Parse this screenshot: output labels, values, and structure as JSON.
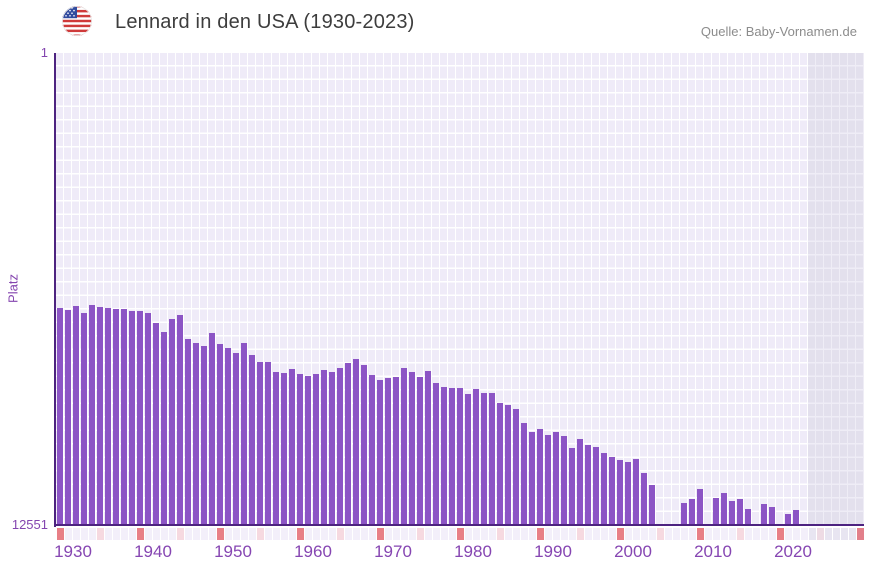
{
  "header": {
    "title": "Lennard in den USA (1930-2023)",
    "source": "Quelle: Baby-Vornamen.de",
    "flag_icon": "us-flag-icon"
  },
  "y_axis": {
    "label": "Platz",
    "tick_top": "1",
    "tick_bottom": "12551"
  },
  "chart_data": {
    "type": "bar",
    "title": "Lennard in den USA (1930-2023)",
    "xlabel": "",
    "ylabel": "Platz",
    "ylim": [
      1,
      12551
    ],
    "y_axis_inverted": true,
    "grid": true,
    "bar_color": "#8c55c5",
    "axis_color": "#4d2380",
    "tick_color": "#8646b2",
    "plot_bg": "#efebf8",
    "no_data_region_bg": "#e3e0ed",
    "decade_marker_color": "#e87f86",
    "half_decade_marker_color": "#f6d9e0",
    "x_range_shown": [
      1930,
      2030
    ],
    "no_data_shaded_region": [
      2024,
      2030
    ],
    "x_tick_labels": [
      "1930",
      "1940",
      "1950",
      "1960",
      "1970",
      "1980",
      "1990",
      "2000",
      "2010",
      "2020"
    ],
    "years": [
      1930,
      1931,
      1932,
      1933,
      1934,
      1935,
      1936,
      1937,
      1938,
      1939,
      1940,
      1941,
      1942,
      1943,
      1944,
      1945,
      1946,
      1947,
      1948,
      1949,
      1950,
      1951,
      1952,
      1953,
      1954,
      1955,
      1956,
      1957,
      1958,
      1959,
      1960,
      1961,
      1962,
      1963,
      1964,
      1965,
      1966,
      1967,
      1968,
      1969,
      1970,
      1971,
      1972,
      1973,
      1974,
      1975,
      1976,
      1977,
      1978,
      1979,
      1980,
      1981,
      1982,
      1983,
      1984,
      1985,
      1986,
      1987,
      1988,
      1989,
      1990,
      1991,
      1992,
      1993,
      1994,
      1995,
      1996,
      1997,
      1998,
      1999,
      2000,
      2001,
      2002,
      2003,
      2004,
      2005,
      2006,
      2007,
      2008,
      2009,
      2010,
      2011,
      2012,
      2013,
      2014,
      2015,
      2016,
      2017,
      2018,
      2019,
      2020,
      2021,
      2022,
      2023
    ],
    "ranks": [
      6796,
      6849,
      6742,
      6929,
      6716,
      6769,
      6796,
      6822,
      6822,
      6876,
      6876,
      6929,
      7195,
      7435,
      7089,
      6982,
      7621,
      7728,
      7808,
      7462,
      7755,
      7861,
      7994,
      7728,
      8048,
      8234,
      8234,
      8501,
      8527,
      8421,
      8554,
      8607,
      8554,
      8447,
      8501,
      8394,
      8261,
      8154,
      8314,
      8581,
      8714,
      8661,
      8634,
      8394,
      8501,
      8634,
      8474,
      8794,
      8901,
      8927,
      8927,
      9087,
      8954,
      9060,
      9060,
      9327,
      9380,
      9487,
      9860,
      10099,
      10019,
      10179,
      10099,
      10206,
      10526,
      10286,
      10445,
      10499,
      10659,
      10765,
      10845,
      10898,
      10818,
      11191,
      11511,
      null,
      null,
      null,
      11991,
      11884,
      11618,
      null,
      11857,
      11724,
      11937,
      11884,
      12150,
      null,
      12017,
      12097,
      null,
      12284,
      12177,
      null
    ]
  }
}
